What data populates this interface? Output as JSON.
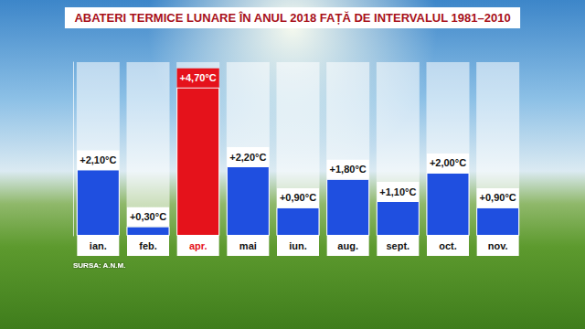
{
  "chart_data": {
    "type": "bar",
    "title": "ABATERI TERMICE LUNARE ÎN ANUL 2018 FAȚĂ DE INTERVALUL 1981–2010",
    "source": "SURSA: A.N.M.",
    "categories": [
      "ian.",
      "feb.",
      "apr.",
      "mai",
      "iun.",
      "aug.",
      "sept.",
      "oct.",
      "nov."
    ],
    "values": [
      2.1,
      0.3,
      4.7,
      2.2,
      0.9,
      1.8,
      1.1,
      2.0,
      0.9
    ],
    "value_labels": [
      "+2,10°C",
      "+0,30°C",
      "+4,70°C",
      "+2,20°C",
      "+0,90°C",
      "+1,80°C",
      "+1,10°C",
      "+2,00°C",
      "+0,90°C"
    ],
    "colors": [
      "#1f4fe0",
      "#1f4fe0",
      "#e5121b",
      "#1f4fe0",
      "#1f4fe0",
      "#1f4fe0",
      "#1f4fe0",
      "#1f4fe0",
      "#1f4fe0"
    ],
    "ylim": [
      0,
      5.5
    ],
    "data_labels": true,
    "tick_labels": "x",
    "grid": false
  }
}
